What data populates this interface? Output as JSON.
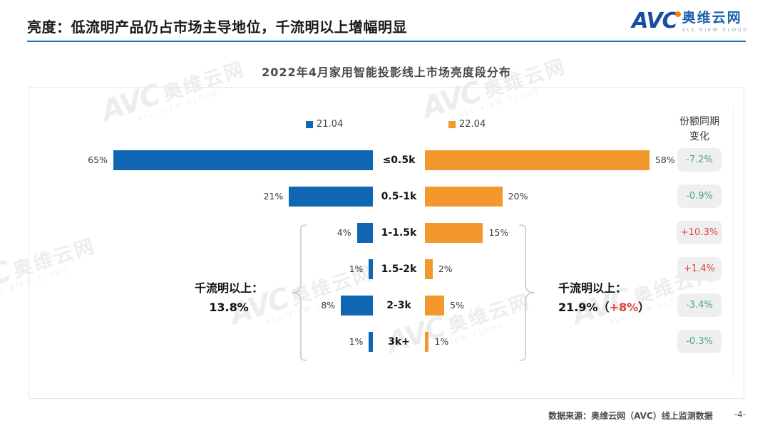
{
  "header": {
    "title": "亮度：低流明产品仍占市场主导地位，千流明以上增幅明显",
    "logo": {
      "avc": "AVC",
      "name": "奥维云网",
      "tagline": "ALL VIEW CLOUD"
    }
  },
  "watermark": {
    "avc": "AVC",
    "name": "奥维云网",
    "tagline": "ALL VIEW CLOUD"
  },
  "chart": {
    "title": "2022年4月家用智能投影线上市场亮度段分布",
    "legend": [
      {
        "label": "21.04",
        "color": "#1166b3"
      },
      {
        "label": "22.04",
        "color": "#f2982d"
      }
    ],
    "change_header_line1": "份额同期",
    "change_header_line2": "变化",
    "annotation_left": {
      "line1": "千流明以上：",
      "line2": "13.8%"
    },
    "annotation_right": {
      "line1": "千流明以上：",
      "value": "21.9%",
      "paren_open": "（",
      "highlight": "+8%",
      "paren_close": "）"
    }
  },
  "chart_data": {
    "type": "bar",
    "orientation": "horizontal-tornado",
    "title": "2022年4月家用智能投影线上市场亮度段分布",
    "categories": [
      "≤0.5k",
      "0.5-1k",
      "1-1.5k",
      "1.5-2k",
      "2-3k",
      "3k+"
    ],
    "series": [
      {
        "name": "21.04",
        "color": "#1166b3",
        "values": [
          65,
          21,
          4,
          1,
          8,
          1
        ]
      },
      {
        "name": "22.04",
        "color": "#f2982d",
        "values": [
          58,
          20,
          15,
          2,
          5,
          1
        ]
      }
    ],
    "value_suffix": "%",
    "yoy_change": [
      "-7.2%",
      "-0.9%",
      "+10.3%",
      "+1.4%",
      "-3.4%",
      "-0.3%"
    ],
    "positive_color": "#e04340",
    "negative_color": "#47a87c",
    "legend_position": "top",
    "grid": false
  },
  "footer": {
    "source": "数据来源：奥维云网（AVC）线上监测数据",
    "page": "-4-"
  }
}
